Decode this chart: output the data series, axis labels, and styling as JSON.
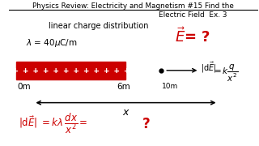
{
  "bg_color": "#ffffff",
  "title_line1": "Physics Review: Electricity and Magnetism #15 Find the",
  "title_line2": "Electric Field  Ex. 3",
  "label_dist": "linear charge distribution",
  "label_lambda": "$\\lambda$ = 40$\\mu$C/m",
  "plus_signs": "+ + + + + + + + + + + +",
  "label_0m": "0m",
  "label_6m": "6m",
  "label_10m": "10m",
  "label_x": "x",
  "rod_color": "#cc0000",
  "text_color_black": "#000000",
  "text_color_red": "#cc0000"
}
